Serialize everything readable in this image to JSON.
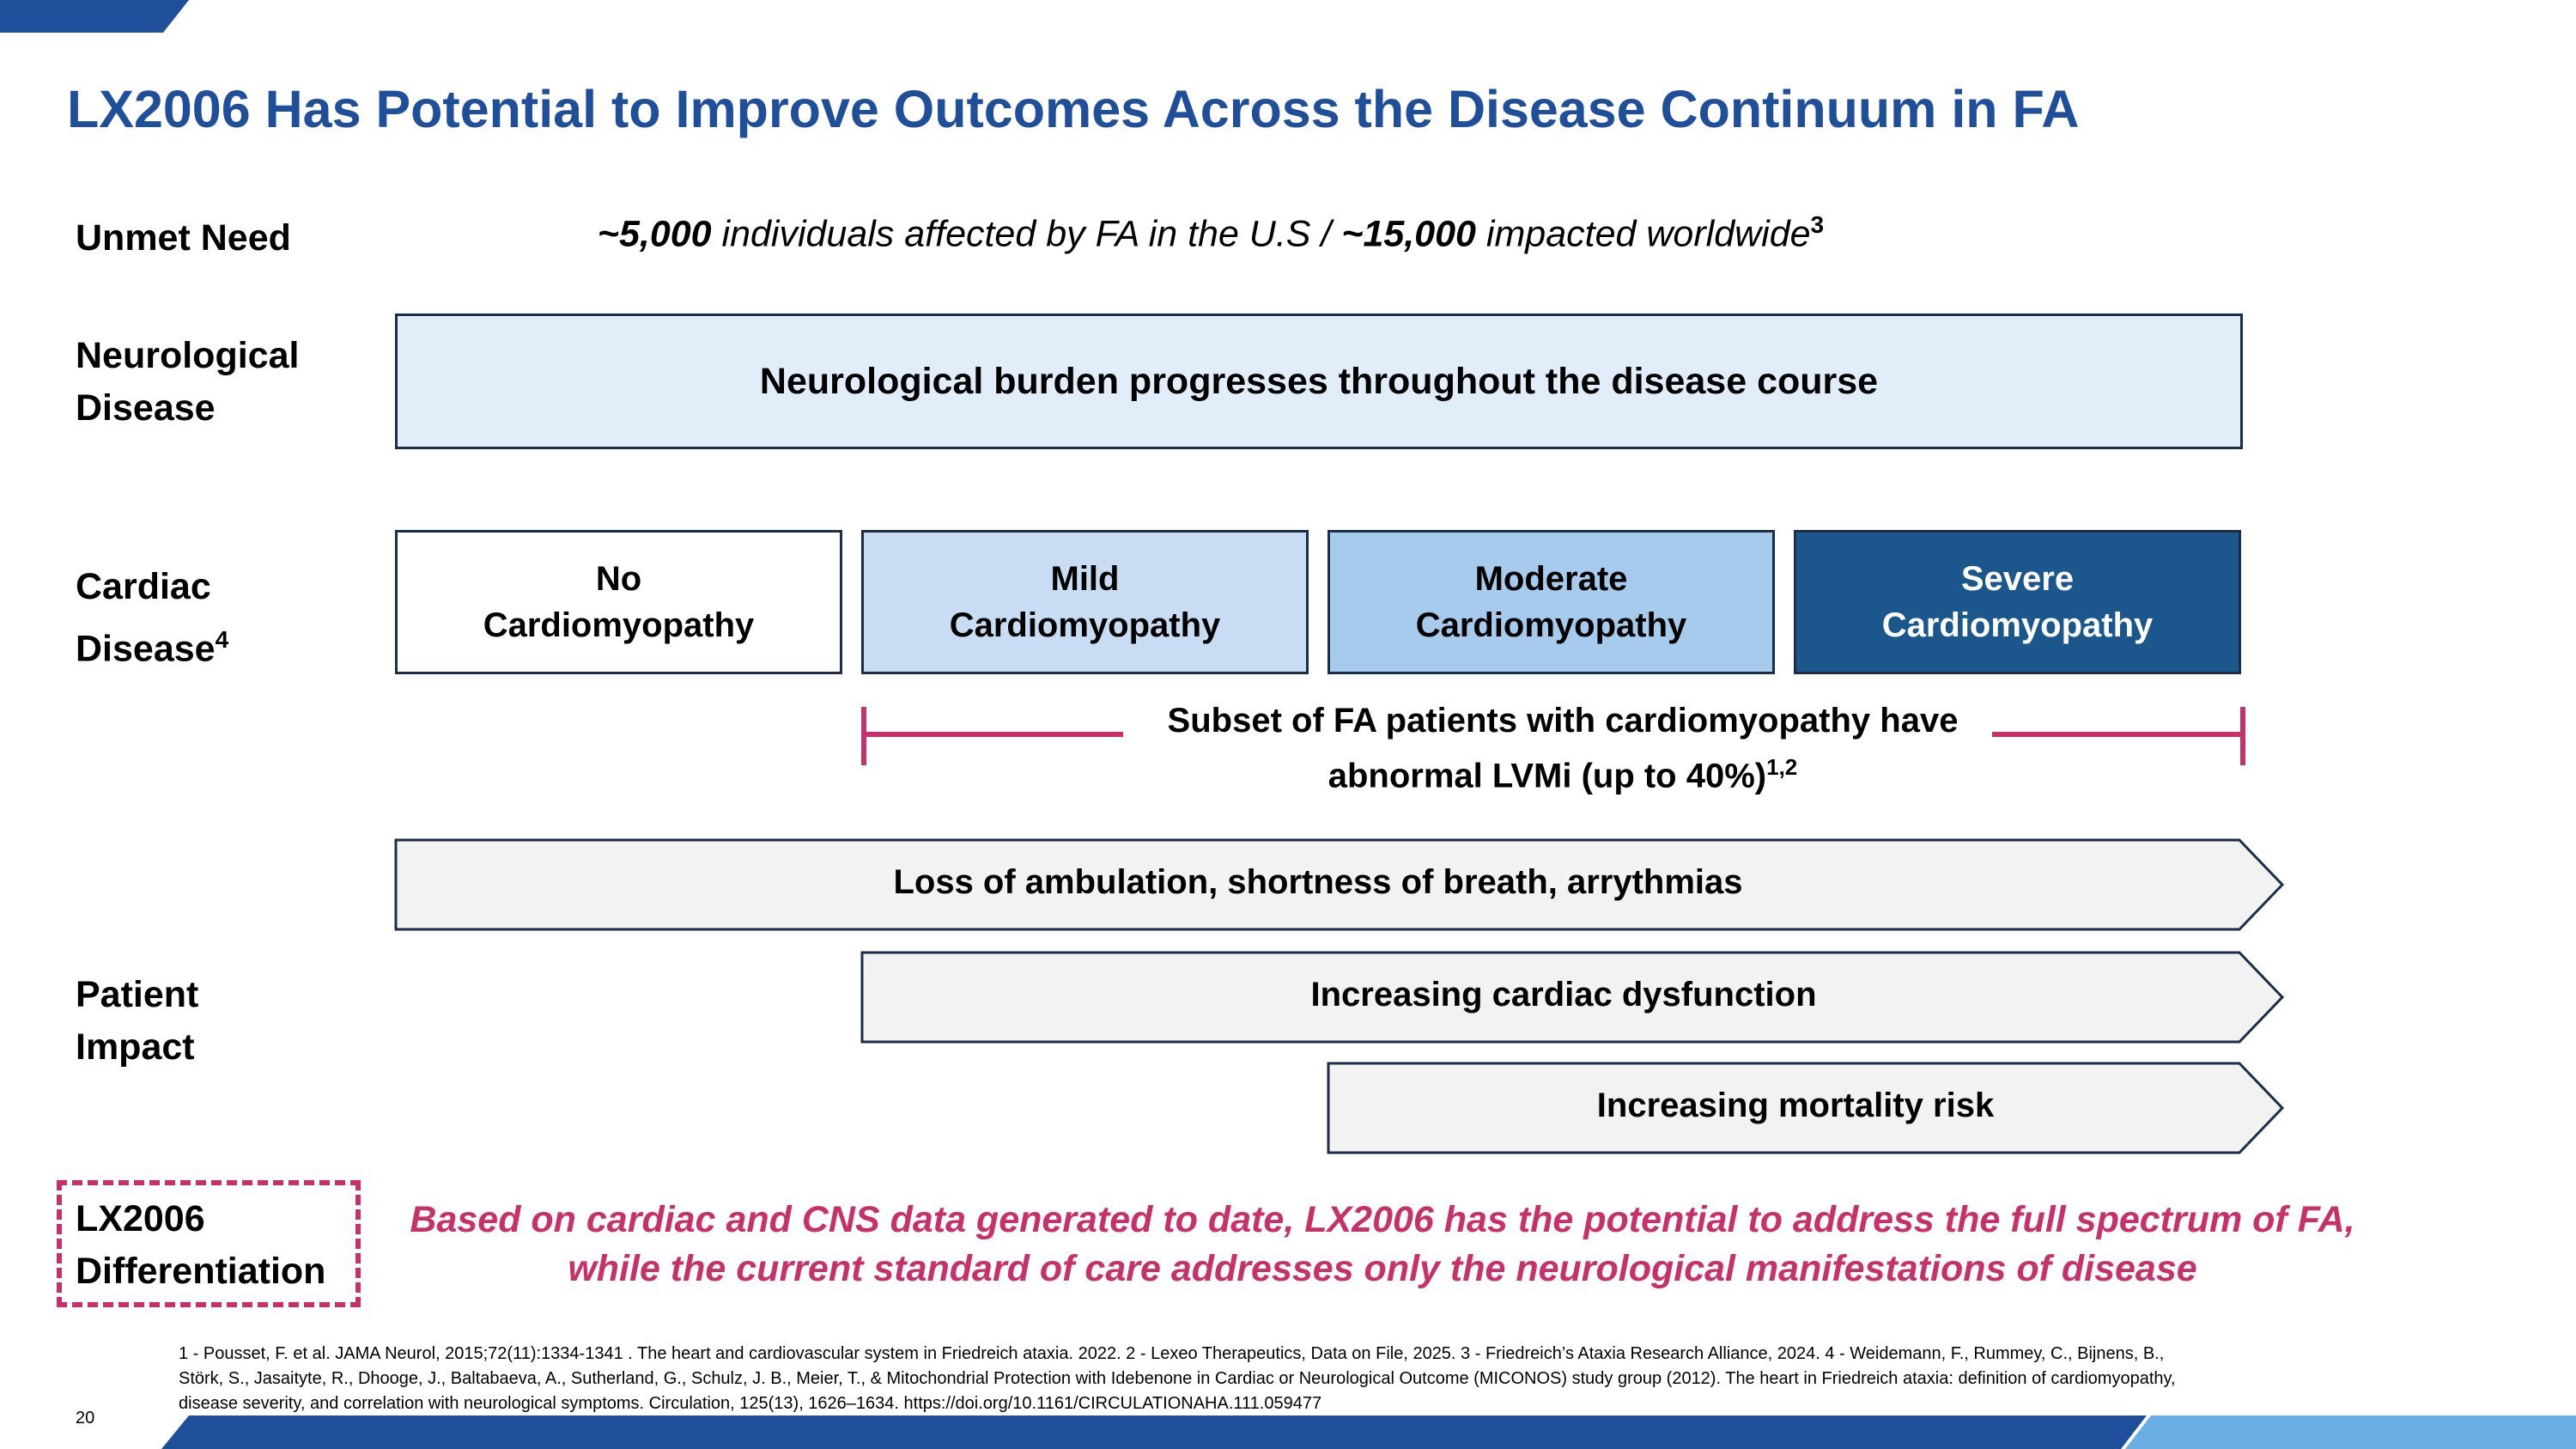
{
  "title": "LX2006 Has Potential to Improve Outcomes Across the Disease Continuum in FA",
  "rows": {
    "unmet_need": "Unmet Need",
    "neuro_line1": "Neurological",
    "neuro_line2": "Disease",
    "cardiac_line1": "Cardiac",
    "cardiac_line2": "Disease",
    "cardiac_sup": "4",
    "patient_line1": "Patient",
    "patient_line2": "Impact",
    "lx_line1": "LX2006",
    "lx_line2": "Differentiation"
  },
  "unmet": {
    "num1": "~5,000",
    "text1": " individuals affected by FA in the U.S / ",
    "num2": "~15,000",
    "text2": " impacted worldwide",
    "sup": "3"
  },
  "neuro_box": "Neurological burden progresses throughout the disease course",
  "stages": [
    {
      "line1": "No",
      "line2": "Cardiomyopathy",
      "fill": "#ffffff",
      "text_color": "#000000"
    },
    {
      "line1": "Mild",
      "line2": "Cardiomyopathy",
      "fill": "#c8ddf3",
      "text_color": "#000000"
    },
    {
      "line1": "Moderate",
      "line2": "Cardiomyopathy",
      "fill": "#a7cbed",
      "text_color": "#000000"
    },
    {
      "line1": "Severe",
      "line2": "Cardiomyopathy",
      "fill": "#1b578c",
      "text_color": "#ffffff"
    }
  ],
  "subset": {
    "line1": "Subset of FA patients with cardiomyopathy have",
    "line2": "abnormal LVMi (up to 40%)",
    "sup": "1,2"
  },
  "impacts": [
    "Loss of ambulation, shortness of breath, arrythmias",
    "Increasing cardiac dysfunction",
    "Increasing mortality risk"
  ],
  "differentiation": {
    "line1": "Based on cardiac and CNS data generated to date, LX2006 has the potential to address the full spectrum of FA,",
    "line2": "while the current standard of care addresses only the neurological manifestations of disease"
  },
  "footnotes": {
    "line1": "1 - Pousset, F. et al. JAMA Neurol, 2015;72(11):1334-1341 . The heart and cardiovascular system in Friedreich ataxia. 2022. 2 - Lexeo Therapeutics, Data on File, 2025.  3 - Friedreich’s Ataxia Research Alliance, 2024. 4 - Weidemann, F., Rummey, C., Bijnens, B.,",
    "line2": "Störk, S., Jasaityte, R., Dhooge, J., Baltabaeva, A., Sutherland, G., Schulz, J. B., Meier, T., & Mitochondrial Protection with Idebenone in Cardiac or Neurological Outcome (MICONOS) study group (2012). The heart in Friedreich ataxia: definition of cardiomyopathy,",
    "line3": "disease severity, and correlation with neurological symptoms. Circulation, 125(13), 1626–1634. https://doi.org/10.1161/CIRCULATIONAHA.111.059477"
  },
  "page_number": "20",
  "colors": {
    "title": "#1f4e9a",
    "accent_pink": "#c8306a",
    "neuro_fill": "#e1eef9",
    "arrow_fill": "#f2f2f2",
    "border": "#1a2e4a",
    "bar_dark": "#1f4e9a",
    "bar_light": "#6aaee6"
  }
}
